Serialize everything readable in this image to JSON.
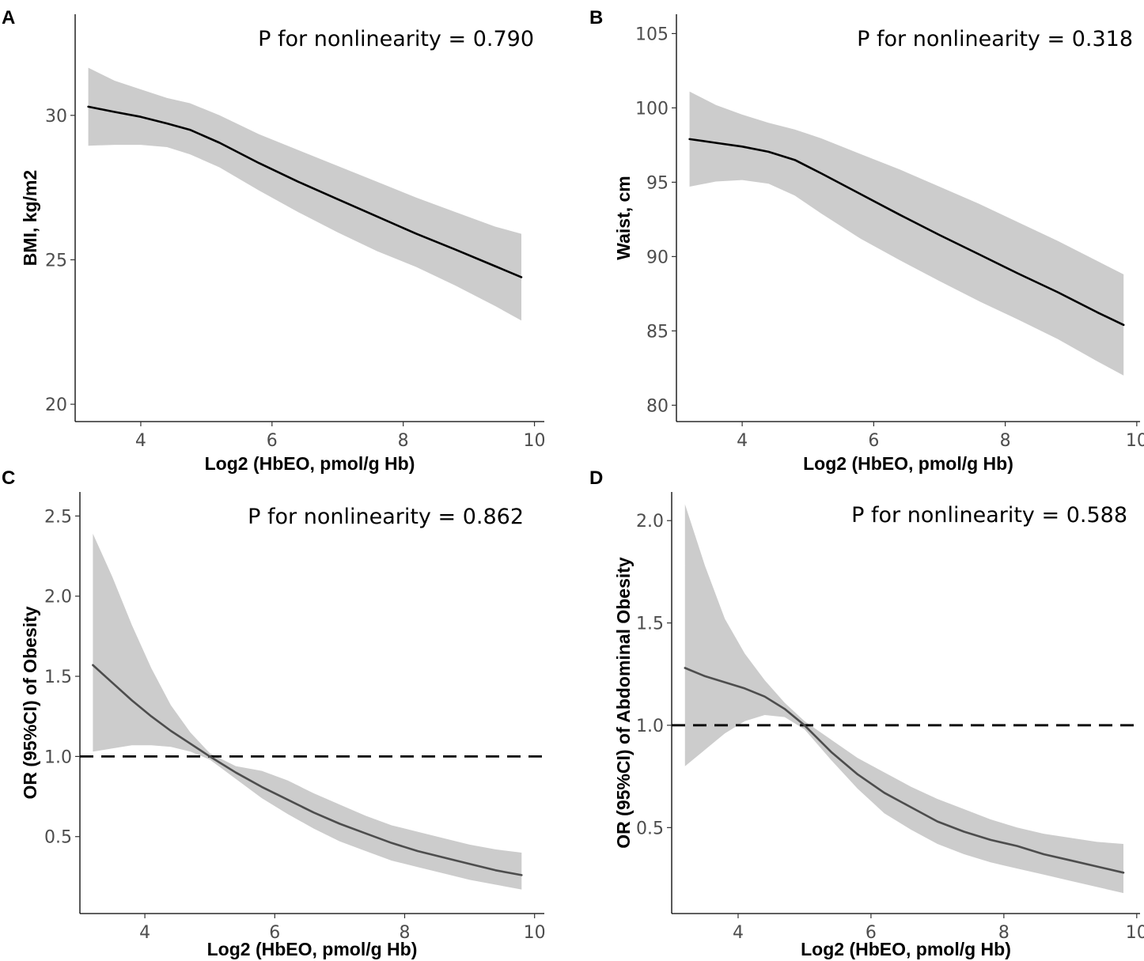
{
  "figure": {
    "common_xlabel": "Log2 (HbEO, pmol/g Hb)"
  },
  "chart_data": [
    {
      "panel": "A",
      "type": "line",
      "title": "",
      "annotation": "P for nonlinearity = 0.790",
      "xlabel": "Log2 (HbEO, pmol/g Hb)",
      "ylabel": "BMI, kg/m2",
      "xlim": [
        3.0,
        10.15
      ],
      "ylim": [
        19.4,
        33.5
      ],
      "xticks": [
        4,
        6,
        8,
        10
      ],
      "yticks": [
        20,
        25,
        30
      ],
      "reference_line": null,
      "line_color": "#000000",
      "series": [
        {
          "name": "estimate",
          "x": [
            3.2,
            3.6,
            4.0,
            4.4,
            4.75,
            5.2,
            5.8,
            6.4,
            7.0,
            7.6,
            8.2,
            8.8,
            9.4,
            9.8
          ],
          "values": [
            30.3,
            30.12,
            29.95,
            29.72,
            29.5,
            29.05,
            28.35,
            27.7,
            27.1,
            26.5,
            25.9,
            25.35,
            24.78,
            24.4
          ],
          "lower": [
            28.95,
            28.98,
            28.98,
            28.9,
            28.65,
            28.2,
            27.4,
            26.65,
            25.95,
            25.3,
            24.75,
            24.1,
            23.4,
            22.9
          ],
          "upper": [
            31.65,
            31.2,
            30.9,
            30.6,
            30.42,
            30.0,
            29.35,
            28.8,
            28.25,
            27.7,
            27.15,
            26.65,
            26.15,
            25.9
          ]
        }
      ]
    },
    {
      "panel": "B",
      "type": "line",
      "title": "",
      "annotation": "P for nonlinearity = 0.318",
      "xlabel": "Log2 (HbEO, pmol/g Hb)",
      "ylabel": "Waist, cm",
      "xlim": [
        3.0,
        10.05
      ],
      "ylim": [
        78.9,
        106.3
      ],
      "xticks": [
        4,
        6,
        8,
        10
      ],
      "yticks": [
        80,
        85,
        90,
        95,
        100,
        105
      ],
      "reference_line": null,
      "line_color": "#000000",
      "series": [
        {
          "name": "estimate",
          "x": [
            3.2,
            3.6,
            4.0,
            4.4,
            4.8,
            5.2,
            5.8,
            6.4,
            7.0,
            7.6,
            8.2,
            8.8,
            9.4,
            9.8
          ],
          "values": [
            97.9,
            97.65,
            97.4,
            97.05,
            96.5,
            95.6,
            94.2,
            92.8,
            91.45,
            90.15,
            88.85,
            87.6,
            86.25,
            85.4
          ],
          "lower": [
            94.7,
            95.05,
            95.15,
            94.9,
            94.1,
            92.9,
            91.2,
            89.75,
            88.35,
            87.0,
            85.75,
            84.45,
            82.95,
            82.0
          ],
          "upper": [
            101.1,
            100.2,
            99.55,
            99.0,
            98.55,
            97.95,
            96.9,
            95.85,
            94.7,
            93.55,
            92.3,
            91.05,
            89.7,
            88.8
          ]
        }
      ]
    },
    {
      "panel": "C",
      "type": "line",
      "title": "",
      "annotation": "P for nonlinearity = 0.862",
      "xlabel": "Log2 (HbEO, pmol/g Hb)",
      "ylabel": "OR (95%CI) of Obesity",
      "xlim": [
        3.0,
        10.15
      ],
      "ylim": [
        0.02,
        2.65
      ],
      "xticks": [
        4,
        6,
        8,
        10
      ],
      "yticks": [
        0.5,
        1.0,
        1.5,
        2.0,
        2.5
      ],
      "tick_labels_y": [
        "0.5",
        "1.0",
        "1.5",
        "2.0",
        "2.5"
      ],
      "reference_line": 1.0,
      "line_color": "#4d4d4d",
      "series": [
        {
          "name": "estimate",
          "x": [
            3.2,
            3.5,
            3.8,
            4.1,
            4.4,
            4.7,
            5.0,
            5.4,
            5.8,
            6.2,
            6.6,
            7.0,
            7.4,
            7.8,
            8.2,
            8.6,
            9.0,
            9.4,
            9.8
          ],
          "values": [
            1.57,
            1.46,
            1.35,
            1.25,
            1.16,
            1.08,
            1.0,
            0.9,
            0.81,
            0.73,
            0.65,
            0.58,
            0.52,
            0.46,
            0.41,
            0.37,
            0.33,
            0.29,
            0.26
          ],
          "lower": [
            1.03,
            1.05,
            1.07,
            1.07,
            1.06,
            1.03,
            0.98,
            0.86,
            0.74,
            0.64,
            0.55,
            0.47,
            0.41,
            0.35,
            0.31,
            0.27,
            0.23,
            0.2,
            0.17
          ],
          "upper": [
            2.39,
            2.12,
            1.82,
            1.55,
            1.32,
            1.15,
            1.02,
            0.94,
            0.91,
            0.85,
            0.77,
            0.7,
            0.63,
            0.57,
            0.53,
            0.49,
            0.45,
            0.42,
            0.4
          ]
        }
      ]
    },
    {
      "panel": "D",
      "type": "line",
      "title": "",
      "annotation": "P for nonlinearity = 0.588",
      "xlabel": "Log2 (HbEO, pmol/g Hb)",
      "ylabel": "OR (95%CI) of Abdominal Obesity",
      "xlim": [
        3.0,
        10.05
      ],
      "ylim": [
        0.08,
        2.14
      ],
      "xticks": [
        4,
        6,
        8,
        10
      ],
      "yticks": [
        0.5,
        1.0,
        1.5,
        2.0
      ],
      "tick_labels_y": [
        "0.5",
        "1.0",
        "1.5",
        "2.0"
      ],
      "reference_line": 1.0,
      "line_color": "#4d4d4d",
      "series": [
        {
          "name": "estimate",
          "x": [
            3.2,
            3.5,
            3.8,
            4.1,
            4.4,
            4.7,
            5.0,
            5.4,
            5.8,
            6.2,
            6.6,
            7.0,
            7.4,
            7.8,
            8.2,
            8.6,
            9.0,
            9.4,
            9.8
          ],
          "values": [
            1.28,
            1.24,
            1.21,
            1.18,
            1.14,
            1.08,
            1.0,
            0.87,
            0.76,
            0.67,
            0.6,
            0.53,
            0.48,
            0.44,
            0.41,
            0.37,
            0.34,
            0.31,
            0.28
          ],
          "lower": [
            0.8,
            0.88,
            0.96,
            1.02,
            1.05,
            1.04,
            0.98,
            0.83,
            0.69,
            0.57,
            0.49,
            0.42,
            0.37,
            0.33,
            0.3,
            0.27,
            0.24,
            0.21,
            0.18
          ],
          "upper": [
            2.08,
            1.78,
            1.52,
            1.35,
            1.22,
            1.11,
            1.02,
            0.93,
            0.84,
            0.77,
            0.7,
            0.64,
            0.59,
            0.54,
            0.5,
            0.47,
            0.45,
            0.43,
            0.42
          ]
        }
      ]
    }
  ]
}
